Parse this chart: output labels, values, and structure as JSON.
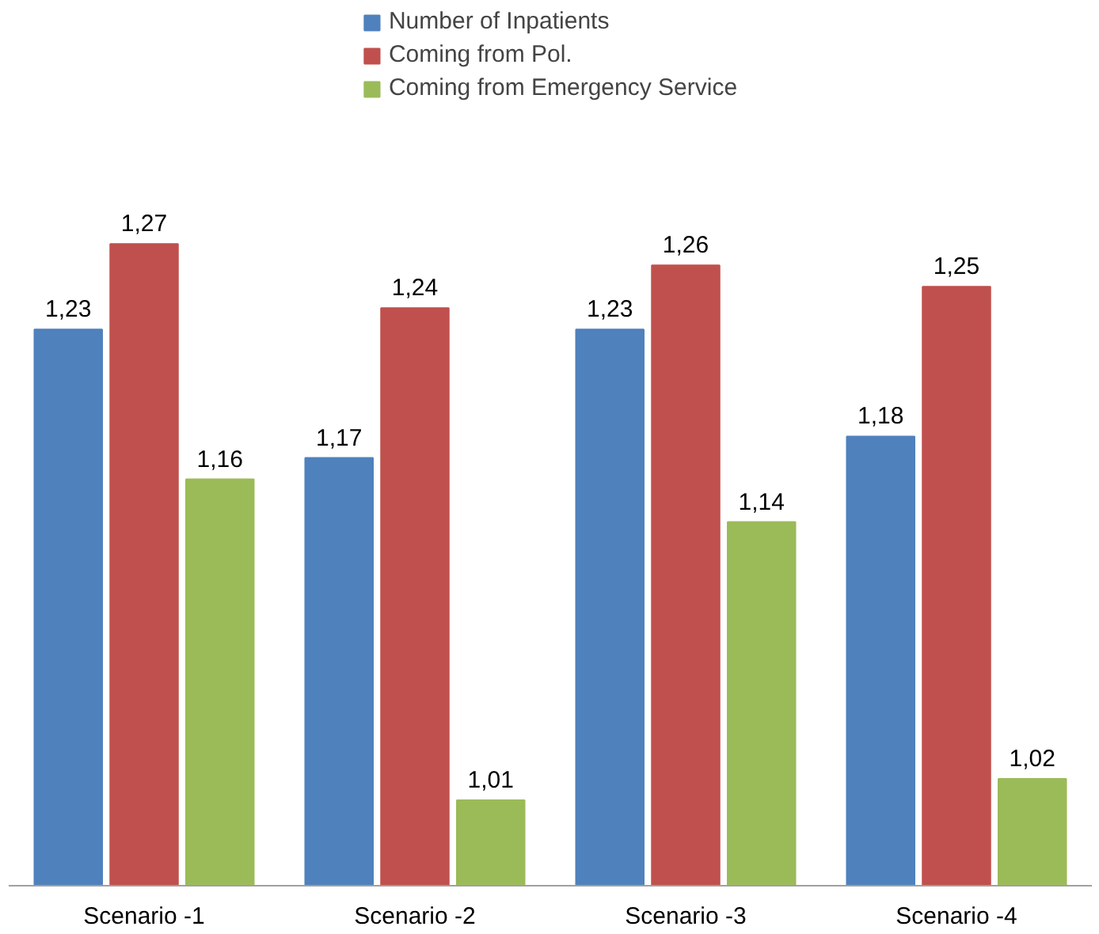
{
  "chart_data": {
    "type": "bar",
    "categories": [
      "Scenario -1",
      "Scenario -2",
      "Scenario -3",
      "Scenario -4"
    ],
    "series": [
      {
        "name": "Number of Inpatients",
        "color": "#4f81bd",
        "values": [
          1.23,
          1.17,
          1.23,
          1.18
        ],
        "value_labels": [
          "1,23",
          "1,17",
          "1,23",
          "1,18"
        ]
      },
      {
        "name": "Coming from Pol.",
        "color": "#c0504d",
        "values": [
          1.27,
          1.24,
          1.26,
          1.25
        ],
        "value_labels": [
          "1,27",
          "1,24",
          "1,26",
          "1,25"
        ]
      },
      {
        "name": "Coming from Emergency Service",
        "color": "#9bbb59",
        "values": [
          1.16,
          1.01,
          1.14,
          1.02
        ],
        "value_labels": [
          "1,16",
          "1,01",
          "1,14",
          "1,02"
        ]
      }
    ],
    "ylim": [
      0.97,
      1.38
    ],
    "relative": false,
    "legend": "top"
  }
}
